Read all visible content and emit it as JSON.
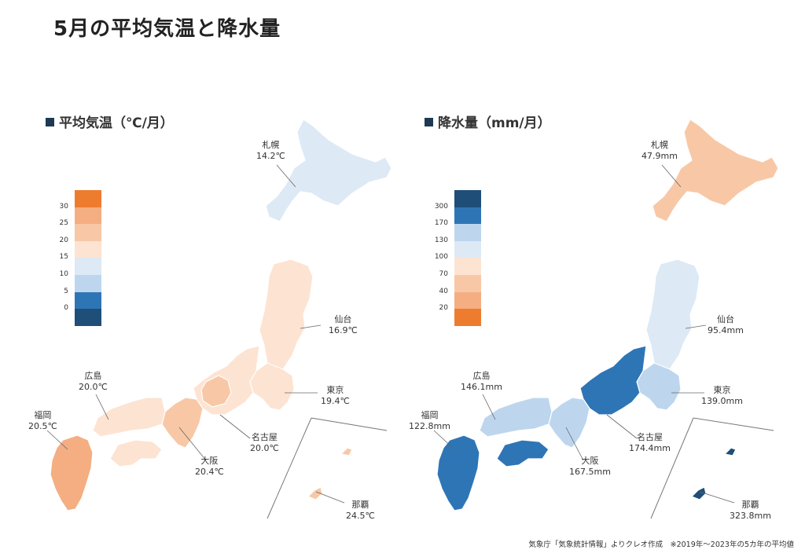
{
  "title": "5月の平均気温と降水量",
  "temp_panel": {
    "heading": "平均気温（℃/月）",
    "legend": {
      "colors": [
        "#ee7c2f",
        "#f4ae82",
        "#f8c8a6",
        "#fde3d2",
        "#dde9f5",
        "#bdd6ee",
        "#2e75b6",
        "#1f4e79"
      ],
      "ticks": [
        "30",
        "25",
        "20",
        "15",
        "10",
        "5",
        "0"
      ]
    },
    "cities": [
      {
        "name": "札幌",
        "value": "14.2℃"
      },
      {
        "name": "仙台",
        "value": "16.9℃"
      },
      {
        "name": "東京",
        "value": "19.4℃"
      },
      {
        "name": "名古屋",
        "value": "20.0℃"
      },
      {
        "name": "大阪",
        "value": "20.4℃"
      },
      {
        "name": "広島",
        "value": "20.0℃"
      },
      {
        "name": "福岡",
        "value": "20.5℃"
      },
      {
        "name": "那覇",
        "value": "24.5℃"
      }
    ],
    "region_colors": {
      "hokkaido": "#dde9f5",
      "mainland": "#fde3d2",
      "warm": "#f8c8a6",
      "kyushu": "#f4ae82",
      "okinawa": "#f8c8a6"
    }
  },
  "rain_panel": {
    "heading": "降水量（mm/月）",
    "legend": {
      "colors": [
        "#1f4e79",
        "#2e75b6",
        "#bdd6ee",
        "#dde9f5",
        "#fde3d2",
        "#f8c8a6",
        "#f4ae82",
        "#ee7c2f"
      ],
      "ticks": [
        "300",
        "170",
        "130",
        "100",
        "70",
        "40",
        "20"
      ]
    },
    "cities": [
      {
        "name": "札幌",
        "value": "47.9mm"
      },
      {
        "name": "仙台",
        "value": "95.4mm"
      },
      {
        "name": "東京",
        "value": "139.0mm"
      },
      {
        "name": "名古屋",
        "value": "174.4mm"
      },
      {
        "name": "大阪",
        "value": "167.5mm"
      },
      {
        "name": "広島",
        "value": "146.1mm"
      },
      {
        "name": "福岡",
        "value": "122.8mm"
      },
      {
        "name": "那覇",
        "value": "323.8mm"
      }
    ],
    "region_colors": {
      "hokkaido": "#f8c8a6",
      "tohoku": "#dde9f5",
      "kanto": "#bdd6ee",
      "chubu": "#2e75b6",
      "kinki": "#bdd6ee",
      "shikoku": "#2e75b6",
      "kyushu": "#2e75b6",
      "okinawa": "#1f4e79"
    }
  },
  "footer": "気象庁「気象統計情報」よりクレオ作成　※2019年～2023年の5カ年の平均値"
}
